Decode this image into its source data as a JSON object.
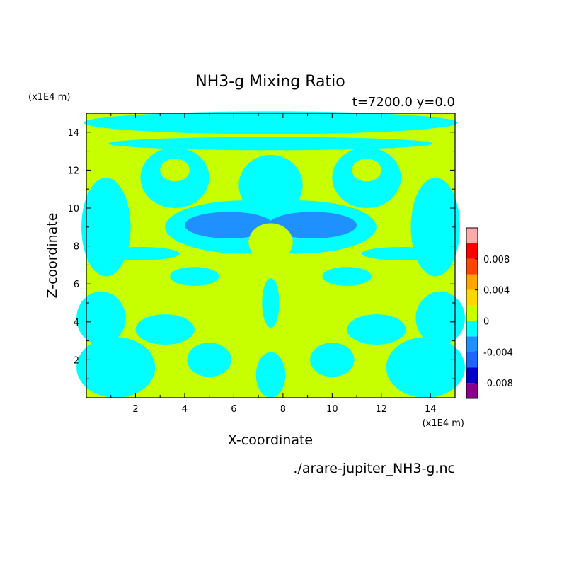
{
  "chart_data": {
    "type": "heatmap",
    "title": "NH3-g Mixing Ratio",
    "subtitle": "t=7200.0 y=0.0",
    "xlabel": "X-coordinate",
    "ylabel": "Z-coordinate",
    "x_unit": "(x1E4 m)",
    "y_unit": "(x1E4 m)",
    "xlim": [
      0,
      15
    ],
    "ylim": [
      0,
      15
    ],
    "x_ticks": [
      "2",
      "4",
      "6",
      "8",
      "10",
      "12",
      "14"
    ],
    "y_ticks": [
      "2",
      "4",
      "6",
      "8",
      "10",
      "12",
      "14"
    ],
    "source_file": "./arare-jupiter_NH3-g.nc",
    "colorbar": {
      "tick_labels": [
        "0.008",
        "0.004",
        "0",
        "-0.004",
        "-0.008"
      ],
      "levels": [
        {
          "from": -0.01,
          "to": -0.008,
          "color": "#8b008b"
        },
        {
          "from": -0.008,
          "to": -0.006,
          "color": "#0000c8"
        },
        {
          "from": -0.006,
          "to": -0.004,
          "color": "#1e64ff"
        },
        {
          "from": -0.004,
          "to": -0.002,
          "color": "#1e90ff"
        },
        {
          "from": -0.002,
          "to": 0.0,
          "color": "#00ffff"
        },
        {
          "from": 0.0,
          "to": 0.002,
          "color": "#c8ff00"
        },
        {
          "from": 0.002,
          "to": 0.004,
          "color": "#ffd700"
        },
        {
          "from": 0.004,
          "to": 0.006,
          "color": "#ffa500"
        },
        {
          "from": 0.006,
          "to": 0.008,
          "color": "#ff4500"
        },
        {
          "from": 0.008,
          "to": 0.01,
          "color": "#ff0000"
        },
        {
          "from": 0.01,
          "to": 0.012,
          "color": "#ffaaaa"
        }
      ]
    },
    "field_note_colors": {
      "positive": "#c8ff00",
      "negative_small": "#00ffff",
      "negative_mid": "#1e90ff"
    }
  }
}
